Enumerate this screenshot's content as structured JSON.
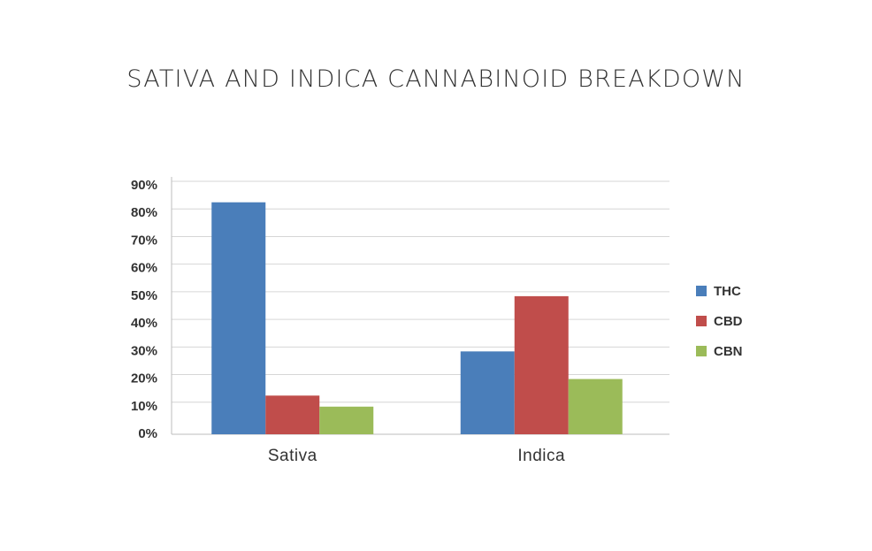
{
  "chart_data": {
    "type": "bar",
    "title": "SATIVA AND INDICA CANNABINOID BREAKDOWN",
    "xlabel": "",
    "ylabel": "",
    "categories": [
      "Sativa",
      "Indica"
    ],
    "series": [
      {
        "name": "THC",
        "values": [
          84,
          30
        ],
        "color": "#4a7eba"
      },
      {
        "name": "CBD",
        "values": [
          14,
          50
        ],
        "color": "#c04d4b"
      },
      {
        "name": "CBN",
        "values": [
          10,
          20
        ],
        "color": "#9bbb59"
      }
    ],
    "ylim": [
      0,
      90
    ],
    "yticks": [
      "0%",
      "10%",
      "20%",
      "30%",
      "40%",
      "50%",
      "60%",
      "70%",
      "80%",
      "90%"
    ],
    "grid": true,
    "legend_position": "right"
  }
}
